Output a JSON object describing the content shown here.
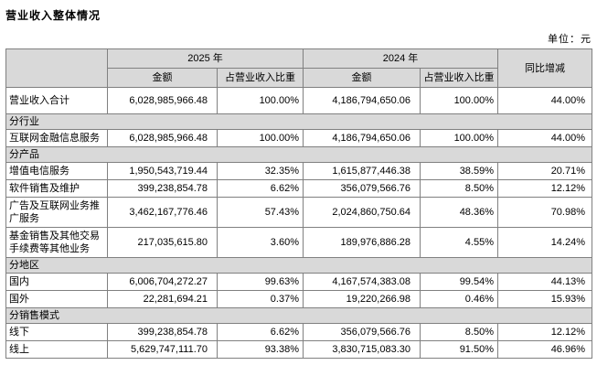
{
  "page": {
    "title": "营业收入整体情况",
    "unit_label": "单位：元"
  },
  "table": {
    "header": {
      "col_2025": "2025 年",
      "col_2024": "2024 年",
      "col_yoy": "同比增减",
      "amount": "金额",
      "proportion": "占营业收入比重"
    },
    "rows": [
      {
        "type": "data",
        "label": "营业收入合计",
        "amount_2025": "6,028,985,966.48",
        "pct_2025": "100.00%",
        "amount_2024": "4,186,794,650.06",
        "pct_2024": "100.00%",
        "yoy": "44.00%"
      },
      {
        "type": "section",
        "label": "分行业"
      },
      {
        "type": "data",
        "label": "互联网金融信息服务",
        "amount_2025": "6,028,985,966.48",
        "pct_2025": "100.00%",
        "amount_2024": "4,186,794,650.06",
        "pct_2024": "100.00%",
        "yoy": "44.00%"
      },
      {
        "type": "section",
        "label": "分产品"
      },
      {
        "type": "data",
        "label": "增值电信服务",
        "amount_2025": "1,950,543,719.44",
        "pct_2025": "32.35%",
        "amount_2024": "1,615,877,446.38",
        "pct_2024": "38.59%",
        "yoy": "20.71%"
      },
      {
        "type": "data",
        "label": "软件销售及维护",
        "amount_2025": "399,238,854.78",
        "pct_2025": "6.62%",
        "amount_2024": "356,079,566.76",
        "pct_2024": "8.50%",
        "yoy": "12.12%"
      },
      {
        "type": "data",
        "label": "广告及互联网业务推广服务",
        "amount_2025": "3,462,167,776.46",
        "pct_2025": "57.43%",
        "amount_2024": "2,024,860,750.64",
        "pct_2024": "48.36%",
        "yoy": "70.98%"
      },
      {
        "type": "data",
        "label": "基金销售及其他交易手续费等其他业务",
        "amount_2025": "217,035,615.80",
        "pct_2025": "3.60%",
        "amount_2024": "189,976,886.28",
        "pct_2024": "4.55%",
        "yoy": "14.24%"
      },
      {
        "type": "section",
        "label": "分地区"
      },
      {
        "type": "data",
        "label": "国内",
        "amount_2025": "6,006,704,272.27",
        "pct_2025": "99.63%",
        "amount_2024": "4,167,574,383.08",
        "pct_2024": "99.54%",
        "yoy": "44.13%"
      },
      {
        "type": "data",
        "label": "国外",
        "amount_2025": "22,281,694.21",
        "pct_2025": "0.37%",
        "amount_2024": "19,220,266.98",
        "pct_2024": "0.46%",
        "yoy": "15.93%"
      },
      {
        "type": "section",
        "label": "分销售模式"
      },
      {
        "type": "data",
        "label": "线下",
        "amount_2025": "399,238,854.78",
        "pct_2025": "6.62%",
        "amount_2024": "356,079,566.76",
        "pct_2024": "8.50%",
        "yoy": "12.12%"
      },
      {
        "type": "data",
        "label": "线上",
        "amount_2025": "5,629,747,111.70",
        "pct_2025": "93.38%",
        "amount_2024": "3,830,715,083.30",
        "pct_2024": "91.50%",
        "yoy": "46.96%"
      }
    ]
  }
}
